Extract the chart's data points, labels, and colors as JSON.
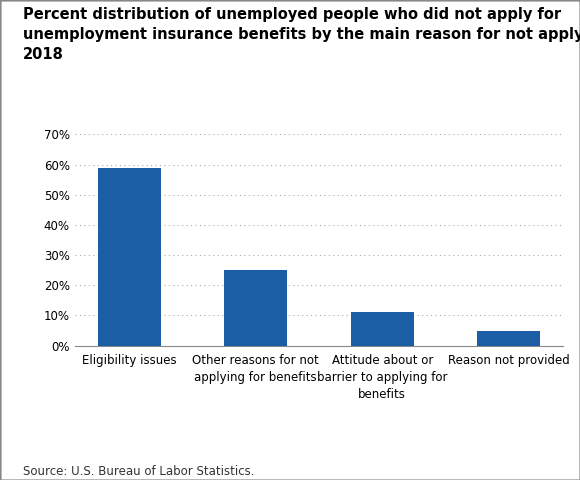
{
  "title_line1": "Percent distribution of unemployed people who did not apply for",
  "title_line2": "unemployment insurance benefits by the main reason for not applying,",
  "title_line3": "2018",
  "categories": [
    "Eligibility issues",
    "Other reasons for not\napplying for benefits",
    "Attitude about or\nbarrier to applying for\nbenefits",
    "Reason not provided"
  ],
  "values": [
    59,
    25,
    11,
    5
  ],
  "bar_color": "#1b5ea6",
  "ylim": [
    0,
    70
  ],
  "yticks": [
    0,
    10,
    20,
    30,
    40,
    50,
    60,
    70
  ],
  "ytick_labels": [
    "0%",
    "10%",
    "20%",
    "30%",
    "40%",
    "50%",
    "60%",
    "70%"
  ],
  "source": "Source: U.S. Bureau of Labor Statistics.",
  "background_color": "#ffffff",
  "title_fontsize": 10.5,
  "tick_fontsize": 8.5,
  "source_fontsize": 8.5
}
